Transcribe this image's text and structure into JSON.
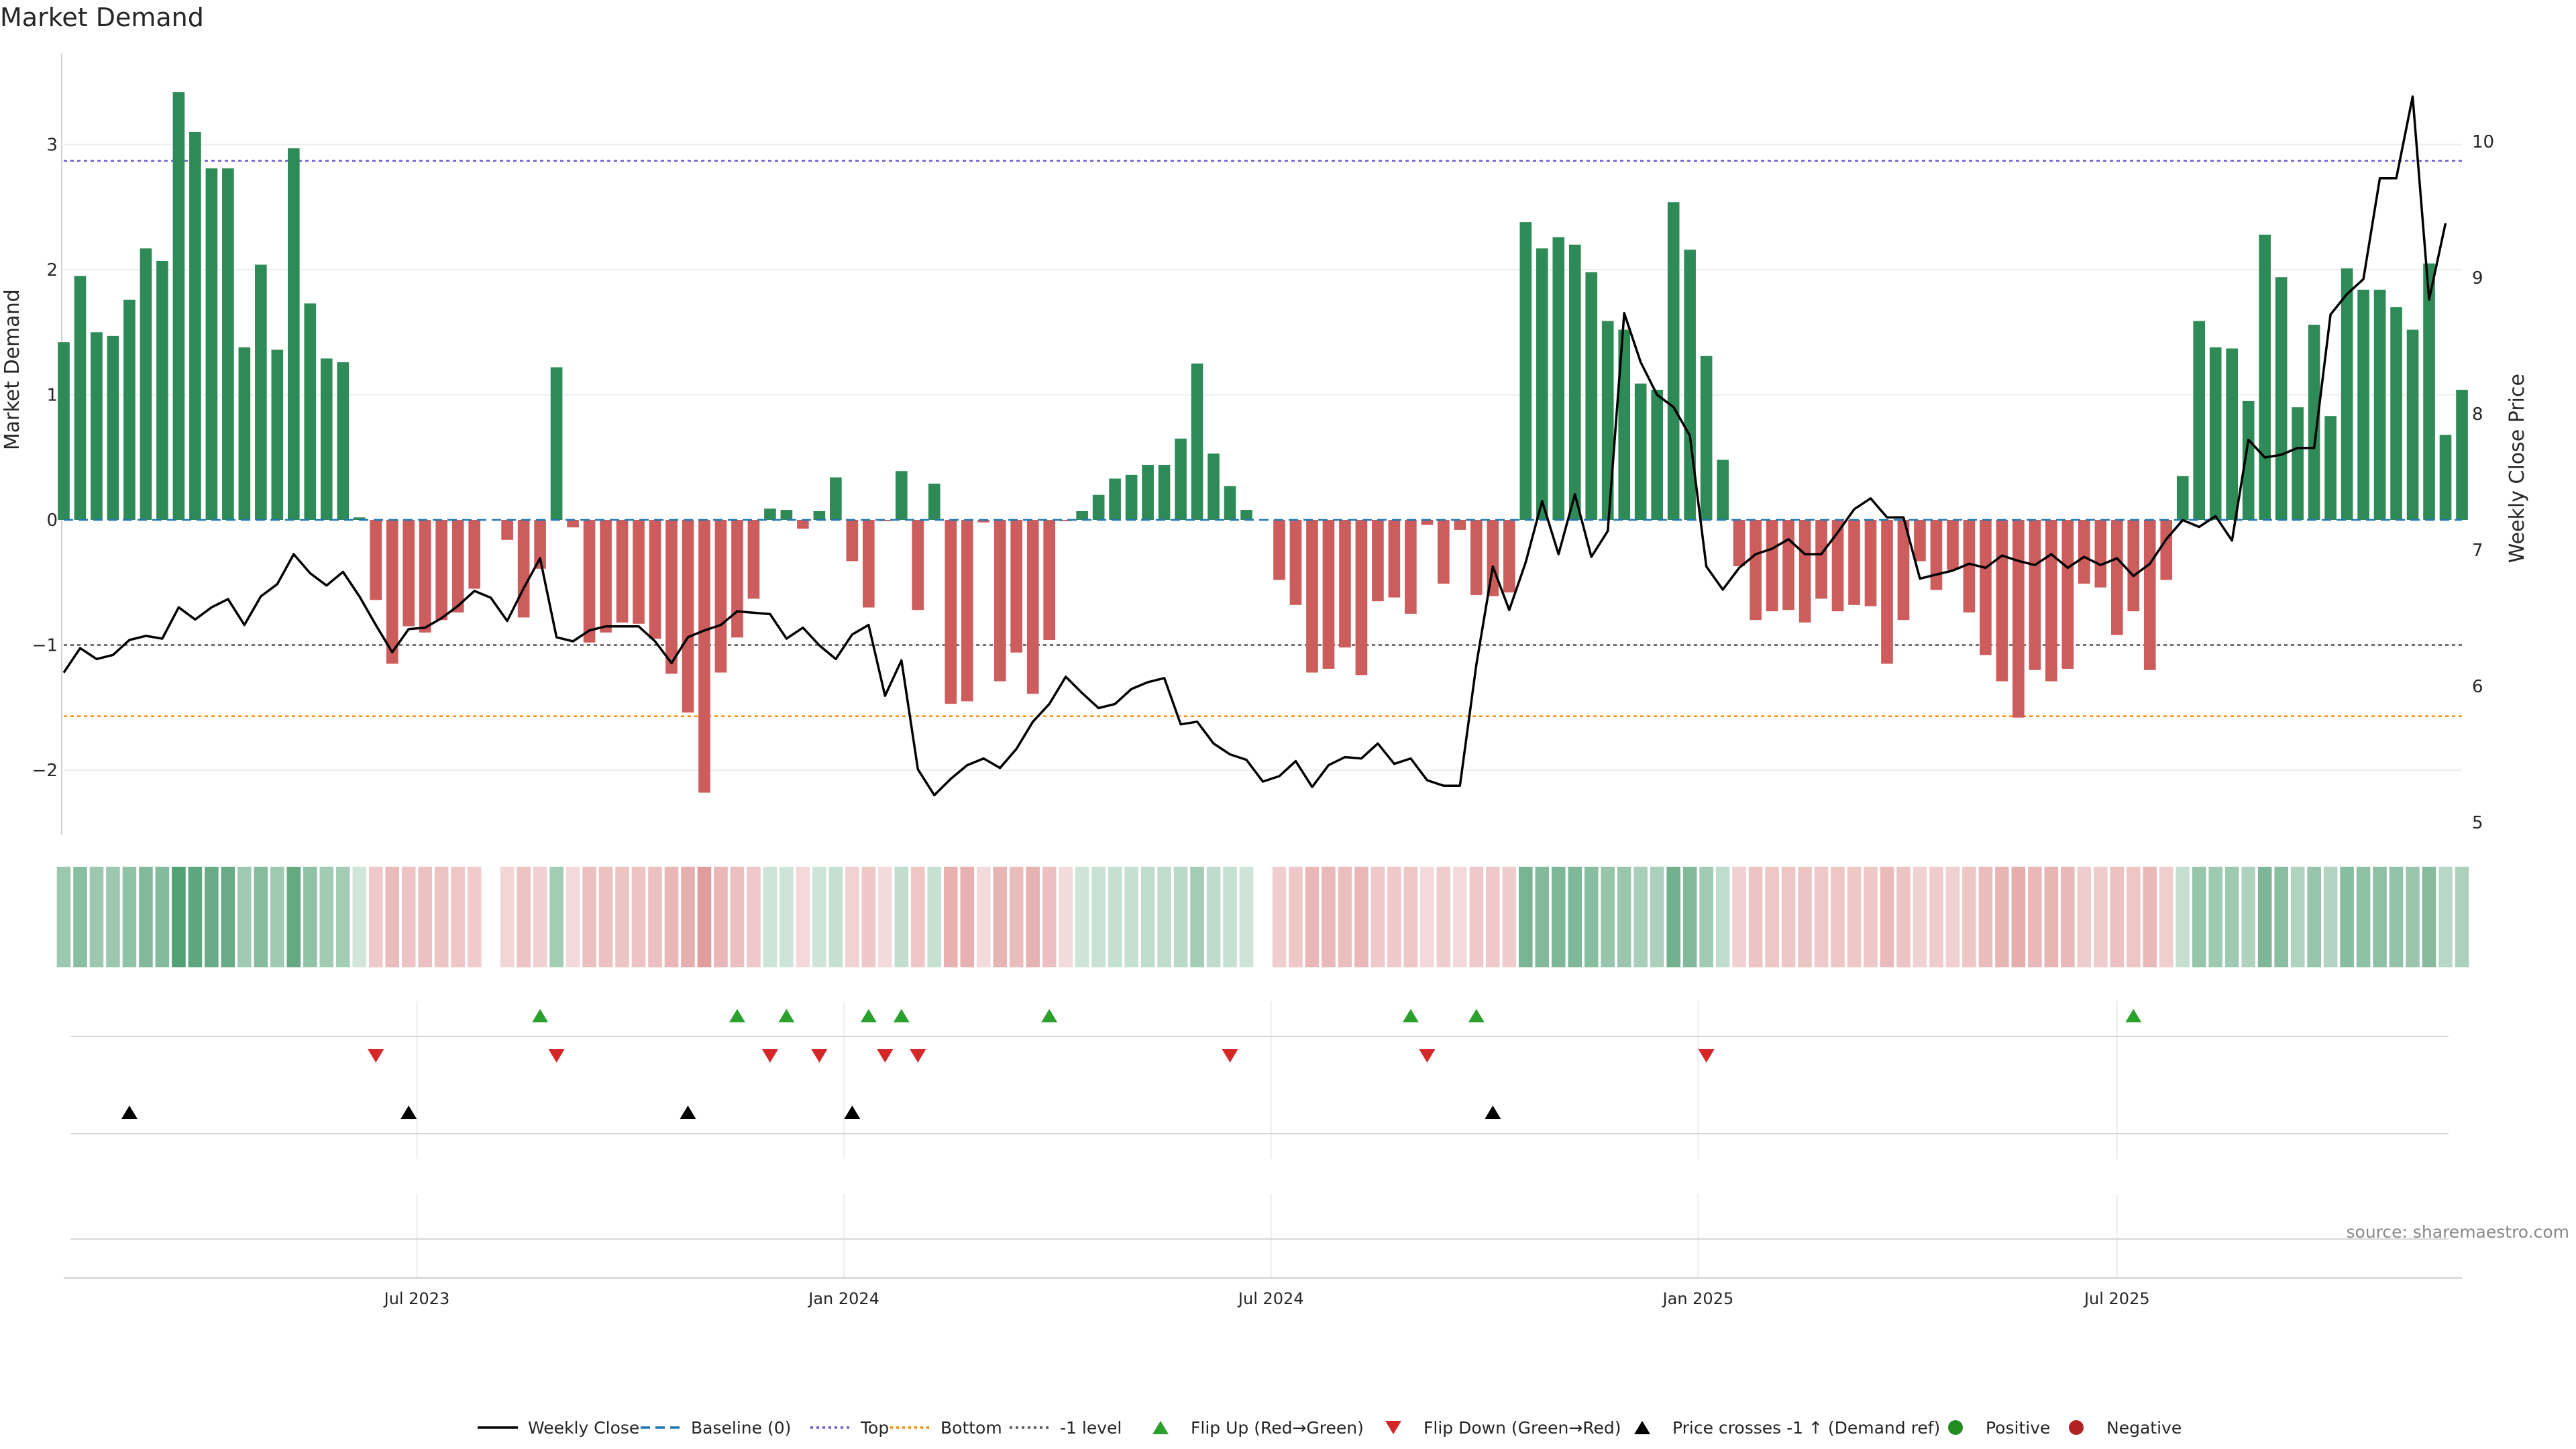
{
  "chart_data": {
    "type": "bar",
    "title": "Market Demand",
    "ylabel": "Market Demand",
    "y2label": "Weekly Close Price",
    "ylim": [
      -2.5,
      3.75
    ],
    "y2lim": [
      5,
      10.5
    ],
    "yticks": [
      -2,
      -1,
      0,
      1,
      2,
      3
    ],
    "y2ticks": [
      5,
      6,
      7,
      8,
      9,
      10
    ],
    "x_tick_labels": [
      "Jul 2023",
      "Jan 2024",
      "Jul 2024",
      "Jan 2025",
      "Jul 2025"
    ],
    "reference_lines": {
      "top": 2.87,
      "minus_one": -1,
      "bottom": -1.57,
      "baseline": 0
    },
    "demand": [
      1.42,
      1.95,
      1.5,
      1.47,
      1.76,
      2.17,
      2.07,
      3.42,
      3.1,
      2.81,
      2.81,
      1.38,
      2.04,
      1.36,
      2.97,
      1.73,
      1.29,
      1.26,
      0.02,
      -0.64,
      -1.15,
      -0.85,
      -0.9,
      -0.8,
      -0.74,
      -0.55,
      0.0,
      -0.16,
      -0.78,
      -0.39,
      1.22,
      -0.06,
      -0.98,
      -0.9,
      -0.82,
      -0.83,
      -0.95,
      -1.23,
      -1.54,
      -2.18,
      -1.22,
      -0.94,
      -0.63,
      0.09,
      0.08,
      -0.07,
      0.07,
      0.34,
      -0.33,
      -0.7,
      -0.01,
      0.39,
      -0.72,
      0.29,
      -1.47,
      -1.45,
      -0.02,
      -1.29,
      -1.06,
      -1.39,
      -0.96,
      -0.01,
      0.07,
      0.2,
      0.33,
      0.36,
      0.44,
      0.44,
      0.65,
      1.25,
      0.53,
      0.27,
      0.08,
      0.0,
      -0.48,
      -0.68,
      -1.22,
      -1.19,
      -1.02,
      -1.24,
      -0.65,
      -0.62,
      -0.75,
      -0.04,
      -0.51,
      -0.08,
      -0.6,
      -0.61,
      -0.58,
      2.38,
      2.17,
      2.26,
      2.2,
      1.98,
      1.59,
      1.52,
      1.09,
      1.04,
      2.54,
      2.16,
      1.31,
      0.48,
      -0.37,
      -0.8,
      -0.73,
      -0.72,
      -0.82,
      -0.63,
      -0.73,
      -0.68,
      -0.69,
      -1.15,
      -0.8,
      -0.33,
      -0.56,
      -0.4,
      -0.74,
      -1.08,
      -1.29,
      -1.58,
      -1.2,
      -1.29,
      -1.19,
      -0.51,
      -0.54,
      -0.92,
      -0.73,
      -1.2,
      -0.48,
      0.35,
      1.59,
      1.38,
      1.37,
      0.95,
      2.28,
      1.94,
      0.9,
      1.56,
      0.83,
      2.01,
      1.84,
      1.84,
      1.7,
      1.52,
      2.05,
      0.68,
      1.04
    ],
    "series": [
      {
        "name": "Weekly Close",
        "axis": "right",
        "values": [
          6.1,
          6.28,
          6.2,
          6.23,
          6.34,
          6.37,
          6.35,
          6.58,
          6.49,
          6.58,
          6.64,
          6.45,
          6.66,
          6.75,
          6.97,
          6.83,
          6.74,
          6.84,
          6.66,
          6.45,
          6.25,
          6.42,
          6.43,
          6.5,
          6.59,
          6.7,
          6.65,
          6.48,
          6.72,
          6.94,
          6.36,
          6.33,
          6.41,
          6.44,
          6.44,
          6.44,
          6.33,
          6.17,
          6.36,
          6.41,
          6.45,
          6.55,
          6.54,
          6.53,
          6.35,
          6.43,
          6.3,
          6.2,
          6.38,
          6.45,
          5.93,
          6.19,
          5.39,
          5.2,
          5.32,
          5.42,
          5.47,
          5.4,
          5.54,
          5.74,
          5.87,
          6.07,
          5.95,
          5.84,
          5.87,
          5.98,
          6.03,
          6.06,
          5.72,
          5.74,
          5.58,
          5.5,
          5.46,
          5.3,
          5.34,
          5.45,
          5.26,
          5.42,
          5.48,
          5.47,
          5.58,
          5.43,
          5.47,
          5.31,
          5.27,
          5.27,
          6.16,
          6.88,
          6.56,
          6.91,
          7.36,
          6.97,
          7.41,
          6.95,
          7.14,
          8.74,
          8.38,
          8.14,
          8.05,
          7.84,
          6.88,
          6.71,
          6.87,
          6.97,
          7.01,
          7.08,
          6.97,
          6.97,
          7.13,
          7.3,
          7.38,
          7.24,
          7.24,
          6.79,
          6.82,
          6.85,
          6.9,
          6.87,
          6.96,
          6.92,
          6.89,
          6.97,
          6.87,
          6.95,
          6.89,
          6.94,
          6.81,
          6.9,
          7.08,
          7.22,
          7.17,
          7.25,
          7.07,
          7.81,
          7.68,
          7.7,
          7.75,
          7.75,
          8.73,
          8.88,
          8.99,
          9.73,
          9.73,
          10.33,
          8.84,
          9.4
        ]
      }
    ],
    "flip_up_weeks": [
      29,
      41,
      44,
      49,
      51,
      60,
      82,
      86,
      126
    ],
    "flip_down_weeks": [
      19,
      30,
      43,
      46,
      50,
      52,
      71,
      83,
      100
    ],
    "price_cross_weeks": [
      4,
      21,
      38,
      48,
      87
    ],
    "legend": {
      "placement": "bottom",
      "entries": [
        "Weekly Close",
        "Baseline (0)",
        "Top",
        "Bottom",
        "-1 level",
        "Flip Up (Red→Green)",
        "Flip Down (Green→Red)",
        "Price crosses -1 ↑ (Demand ref)",
        "Positive",
        "Negative"
      ]
    },
    "colors": {
      "positive": "#2e8b57",
      "negative": "#cd5c5c",
      "price": "#000000",
      "top": "#6a5acd",
      "bottom": "#ff8c00",
      "minus_one": "#555555",
      "baseline": "#1f77b4",
      "flip_up": "#2ca02c",
      "flip_down": "#d62728",
      "cross": "#000000",
      "dot_positive": "#228b22",
      "dot_negative": "#b22222"
    },
    "source": "source: sharemaestro.com"
  }
}
